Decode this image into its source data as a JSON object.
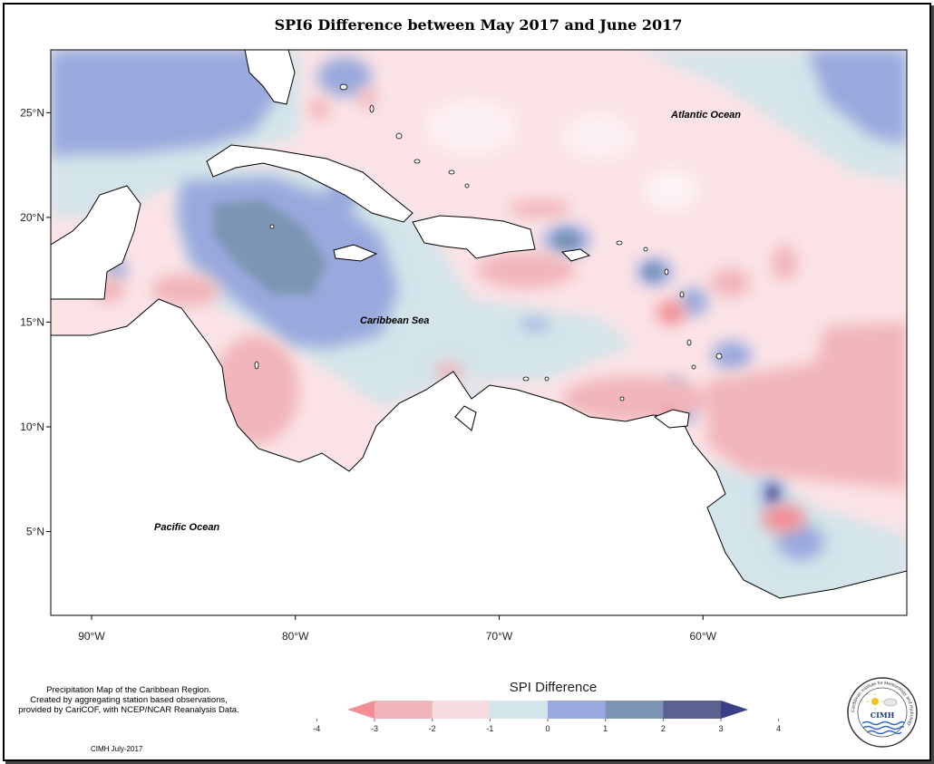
{
  "title": "SPI6 Difference between May 2017 and June 2017",
  "axes": {
    "longitude_labels": [
      "90°W",
      "80°W",
      "70°W",
      "60°W"
    ],
    "longitude_values": [
      -90,
      -80,
      -70,
      -60
    ],
    "latitude_labels": [
      "25°N",
      "20°N",
      "15°N",
      "10°N",
      "5°N"
    ],
    "latitude_values": [
      25,
      20,
      15,
      10,
      5
    ],
    "lon_range": [
      -92,
      -50
    ],
    "lat_range": [
      1,
      28
    ]
  },
  "ocean_labels": {
    "atlantic": "Atlantic Ocean",
    "caribbean": "Caribbean Sea",
    "pacific": "Pacific Ocean"
  },
  "legend": {
    "title": "SPI Difference",
    "tick_labels": [
      "-4",
      "-3",
      "-2",
      "-1",
      "0",
      "1",
      "2",
      "3",
      "4"
    ],
    "colors": [
      "#f28e96",
      "#f0b5ba",
      "#f7dcdf",
      "#d3e5ea",
      "#9aa9dd",
      "#7c95b4",
      "#5a6290",
      "#3a3f86"
    ]
  },
  "note_lines": [
    "Precipitation Map of the Caribbean Region.",
    "Created by aggregating station based observations,",
    "provided by CariCOF, with NCEP/NCAR Reanalysis Data."
  ],
  "credit": "CIMH July-2017",
  "logo": {
    "ring_text": "Caribbean Institute for Meteorology and Hydrology",
    "abbrev": "CIMH"
  }
}
